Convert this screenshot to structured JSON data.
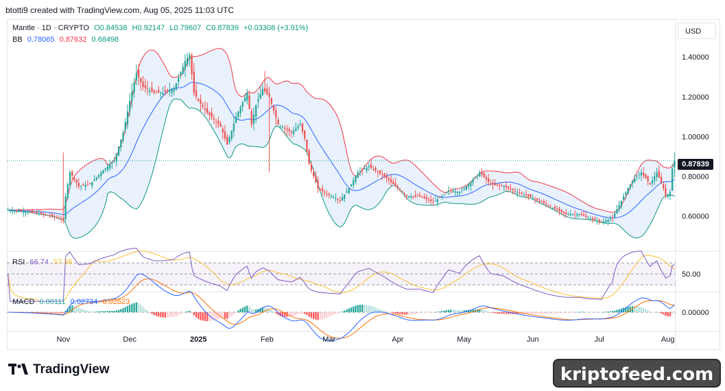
{
  "header": {
    "attribution": "btotti9 created with TradingView.com, Aug 05, 2025 11:03 UTC"
  },
  "legend": {
    "symbol": "Mantle · 1D · CRYPTO",
    "open": "O0.84538",
    "high": "H0.92147",
    "low": "L0.79607",
    "close": "C0.87839",
    "change": "+0.03308 (+3.91%)",
    "bb_label": "BB",
    "bb_basis": "0.78065",
    "bb_upper": "0.87632",
    "bb_lower": "0.68498",
    "rsi_label": "RSI",
    "rsi_value": "66.74",
    "rsi_ma": "57.36",
    "macd_label": "MACD",
    "macd_hist": "0.00111",
    "macd_line": "0.02734",
    "macd_signal": "0.02623"
  },
  "currency_button": "USD",
  "last_price_tag": "0.87839",
  "footer": {
    "logo_text": "TradingView"
  },
  "watermark": "kriptofeed.com",
  "colors": {
    "up": "#26a69a",
    "down": "#ef5350",
    "bb_basis": "#2962ff",
    "bb_upper": "#f23645",
    "bb_lower": "#089981",
    "bb_fill": "#e3eefb",
    "rsi": "#7e57c2",
    "rsi_ma": "#fbc02d",
    "macd": "#2962ff",
    "signal": "#ff6d00"
  },
  "chart_data": {
    "type": "candlestick",
    "price_axis": {
      "ticks": [
        "1.40000",
        "1.20000",
        "1.00000",
        "0.80000",
        "0.60000"
      ],
      "range": [
        0.43,
        1.48
      ]
    },
    "rsi_axis": {
      "ticks": [
        "50.00"
      ],
      "range": [
        20,
        85
      ],
      "band": [
        30,
        70
      ]
    },
    "macd_axis": {
      "ticks": [
        "0.00000"
      ],
      "range": [
        -0.07,
        0.07
      ]
    },
    "x_ticks": [
      "Nov",
      "Dec",
      "2025",
      "Feb",
      "Mar",
      "Apr",
      "May",
      "Jun",
      "Jul",
      "Aug"
    ],
    "x_tick_day_index": [
      25,
      55,
      86,
      117,
      145,
      176,
      206,
      237,
      267,
      298
    ],
    "close_anchors": [
      [
        0,
        0.63
      ],
      [
        10,
        0.62
      ],
      [
        20,
        0.6
      ],
      [
        25,
        0.58
      ],
      [
        26,
        0.7
      ],
      [
        28,
        0.82
      ],
      [
        32,
        0.75
      ],
      [
        37,
        0.76
      ],
      [
        42,
        0.82
      ],
      [
        48,
        0.88
      ],
      [
        52,
        1.02
      ],
      [
        55,
        1.18
      ],
      [
        58,
        1.32
      ],
      [
        61,
        1.25
      ],
      [
        66,
        1.22
      ],
      [
        70,
        1.22
      ],
      [
        75,
        1.24
      ],
      [
        80,
        1.38
      ],
      [
        82,
        1.41
      ],
      [
        84,
        1.22
      ],
      [
        86,
        1.18
      ],
      [
        90,
        1.12
      ],
      [
        96,
        1.05
      ],
      [
        99,
        0.96
      ],
      [
        103,
        1.1
      ],
      [
        108,
        1.22
      ],
      [
        110,
        1.06
      ],
      [
        112,
        1.16
      ],
      [
        115,
        1.24
      ],
      [
        118,
        1.2
      ],
      [
        122,
        1.06
      ],
      [
        128,
        1.02
      ],
      [
        132,
        1.06
      ],
      [
        134,
        0.99
      ],
      [
        136,
        0.86
      ],
      [
        140,
        0.74
      ],
      [
        144,
        0.71
      ],
      [
        150,
        0.68
      ],
      [
        154,
        0.74
      ],
      [
        158,
        0.82
      ],
      [
        163,
        0.85
      ],
      [
        170,
        0.8
      ],
      [
        176,
        0.74
      ],
      [
        180,
        0.7
      ],
      [
        186,
        0.7
      ],
      [
        192,
        0.67
      ],
      [
        196,
        0.7
      ],
      [
        199,
        0.73
      ],
      [
        204,
        0.72
      ],
      [
        208,
        0.76
      ],
      [
        213,
        0.82
      ],
      [
        218,
        0.76
      ],
      [
        224,
        0.75
      ],
      [
        230,
        0.72
      ],
      [
        235,
        0.7
      ],
      [
        241,
        0.67
      ],
      [
        246,
        0.64
      ],
      [
        252,
        0.61
      ],
      [
        258,
        0.61
      ],
      [
        262,
        0.59
      ],
      [
        268,
        0.57
      ],
      [
        273,
        0.59
      ],
      [
        278,
        0.7
      ],
      [
        282,
        0.78
      ],
      [
        286,
        0.82
      ],
      [
        290,
        0.76
      ],
      [
        293,
        0.82
      ],
      [
        296,
        0.74
      ],
      [
        297,
        0.7
      ],
      [
        299,
        0.72
      ],
      [
        300,
        0.84
      ],
      [
        301,
        0.878
      ]
    ],
    "last": {
      "open": 0.84538,
      "high": 0.92147,
      "low": 0.79607,
      "close": 0.87839
    },
    "bollinger": {
      "basis": 0.78065,
      "upper": 0.87632,
      "lower": 0.68498
    },
    "rsi": {
      "value": 66.74,
      "ma": 57.36
    },
    "macd": {
      "hist": 0.00111,
      "macd": 0.02734,
      "signal": 0.02623
    }
  }
}
